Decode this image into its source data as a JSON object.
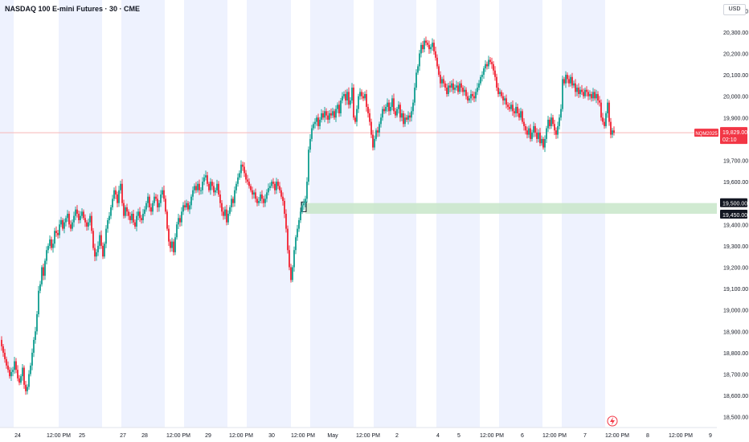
{
  "title": "NASDAQ 100 E-mini Futures · 30 · CME",
  "currency": "USD",
  "colors": {
    "up": "#26a69a",
    "down": "#f23645",
    "session_band": "#eef2fe",
    "price_line": "#f7b7b7",
    "zone": "#c8e6c9",
    "tag_dark": "#131722",
    "badge_red": "#f23645",
    "alert": "#f23645"
  },
  "price_tag": {
    "symbol": "NQM2025",
    "price": "19,829.00",
    "countdown": "02:10"
  },
  "zone_tags": {
    "upper": "19,500.00",
    "lower": "19,450.00"
  },
  "alert_icon": "lightning-icon",
  "chart_data": {
    "type": "candlestick",
    "title": "NASDAQ 100 E-mini Futures · 30 · CME",
    "ylim": [
      18450,
      20450
    ],
    "y_ticks": [
      "20,400.00",
      "20,300.00",
      "20,200.00",
      "20,100.00",
      "20,000.00",
      "19,900.00",
      "19,800.00",
      "19,700.00",
      "19,600.00",
      "19,500.00",
      "19,400.00",
      "19,300.00",
      "19,200.00",
      "19,100.00",
      "19,000.00",
      "18,900.00",
      "18,800.00",
      "18,700.00",
      "18,600.00",
      "18,500.00"
    ],
    "x_ticks": [
      "24",
      "12:00 PM",
      "25",
      "27",
      "28",
      "12:00 PM",
      "29",
      "12:00 PM",
      "30",
      "12:00 PM",
      "May",
      "12:00 PM",
      "2",
      "4",
      "5",
      "12:00 PM",
      "6",
      "12:00 PM",
      "7",
      "12:00 PM",
      "8",
      "12:00 PM",
      "9"
    ],
    "current_price": 19829,
    "zone": [
      19450,
      19500
    ],
    "price_path": [
      [
        0,
        18860
      ],
      [
        2,
        18830
      ],
      [
        4,
        18800
      ],
      [
        6,
        18770
      ],
      [
        8,
        18740
      ],
      [
        10,
        18720
      ],
      [
        12,
        18690
      ],
      [
        14,
        18710
      ],
      [
        16,
        18720
      ],
      [
        18,
        18760
      ],
      [
        20,
        18720
      ],
      [
        22,
        18680
      ],
      [
        24,
        18660
      ],
      [
        26,
        18690
      ],
      [
        28,
        18730
      ],
      [
        30,
        18650
      ],
      [
        32,
        18620
      ],
      [
        34,
        18640
      ],
      [
        36,
        18700
      ],
      [
        38,
        18740
      ],
      [
        40,
        18800
      ],
      [
        42,
        18860
      ],
      [
        44,
        18900
      ],
      [
        46,
        18980
      ],
      [
        48,
        19090
      ],
      [
        50,
        19120
      ],
      [
        52,
        19200
      ],
      [
        54,
        19160
      ],
      [
        56,
        19230
      ],
      [
        58,
        19280
      ],
      [
        60,
        19300
      ],
      [
        62,
        19330
      ],
      [
        64,
        19290
      ],
      [
        66,
        19310
      ],
      [
        68,
        19370
      ],
      [
        70,
        19360
      ],
      [
        72,
        19350
      ],
      [
        74,
        19400
      ],
      [
        76,
        19420
      ],
      [
        78,
        19380
      ],
      [
        80,
        19410
      ],
      [
        82,
        19430
      ],
      [
        84,
        19450
      ],
      [
        86,
        19400
      ],
      [
        88,
        19380
      ],
      [
        90,
        19410
      ],
      [
        92,
        19440
      ],
      [
        94,
        19470
      ],
      [
        96,
        19450
      ],
      [
        98,
        19420
      ],
      [
        100,
        19440
      ],
      [
        102,
        19460
      ],
      [
        104,
        19430
      ],
      [
        106,
        19410
      ],
      [
        108,
        19390
      ],
      [
        110,
        19410
      ],
      [
        112,
        19440
      ],
      [
        114,
        19370
      ],
      [
        116,
        19290
      ],
      [
        118,
        19250
      ],
      [
        120,
        19270
      ],
      [
        122,
        19300
      ],
      [
        124,
        19350
      ],
      [
        126,
        19300
      ],
      [
        128,
        19250
      ],
      [
        130,
        19310
      ],
      [
        132,
        19380
      ],
      [
        134,
        19420
      ],
      [
        136,
        19440
      ],
      [
        138,
        19480
      ],
      [
        140,
        19520
      ],
      [
        142,
        19560
      ],
      [
        144,
        19540
      ],
      [
        146,
        19500
      ],
      [
        148,
        19560
      ],
      [
        150,
        19590
      ],
      [
        152,
        19500
      ],
      [
        154,
        19440
      ],
      [
        156,
        19480
      ],
      [
        158,
        19460
      ],
      [
        160,
        19440
      ],
      [
        162,
        19420
      ],
      [
        164,
        19450
      ],
      [
        166,
        19410
      ],
      [
        168,
        19390
      ],
      [
        170,
        19440
      ],
      [
        172,
        19460
      ],
      [
        174,
        19430
      ],
      [
        176,
        19420
      ],
      [
        178,
        19450
      ],
      [
        180,
        19470
      ],
      [
        182,
        19500
      ],
      [
        184,
        19530
      ],
      [
        186,
        19480
      ],
      [
        188,
        19460
      ],
      [
        190,
        19500
      ],
      [
        192,
        19530
      ],
      [
        194,
        19520
      ],
      [
        196,
        19480
      ],
      [
        198,
        19500
      ],
      [
        200,
        19540
      ],
      [
        202,
        19560
      ],
      [
        204,
        19520
      ],
      [
        206,
        19460
      ],
      [
        208,
        19380
      ],
      [
        210,
        19320
      ],
      [
        212,
        19290
      ],
      [
        214,
        19320
      ],
      [
        216,
        19270
      ],
      [
        218,
        19340
      ],
      [
        220,
        19400
      ],
      [
        222,
        19430
      ],
      [
        224,
        19410
      ],
      [
        226,
        19460
      ],
      [
        228,
        19490
      ],
      [
        230,
        19480
      ],
      [
        232,
        19500
      ],
      [
        234,
        19470
      ],
      [
        236,
        19490
      ],
      [
        238,
        19530
      ],
      [
        240,
        19560
      ],
      [
        242,
        19580
      ],
      [
        244,
        19560
      ],
      [
        246,
        19590
      ],
      [
        248,
        19560
      ],
      [
        250,
        19560
      ],
      [
        252,
        19600
      ],
      [
        254,
        19620
      ],
      [
        256,
        19630
      ],
      [
        258,
        19590
      ],
      [
        260,
        19560
      ],
      [
        262,
        19600
      ],
      [
        264,
        19580
      ],
      [
        266,
        19550
      ],
      [
        268,
        19560
      ],
      [
        270,
        19590
      ],
      [
        272,
        19540
      ],
      [
        274,
        19500
      ],
      [
        276,
        19460
      ],
      [
        278,
        19440
      ],
      [
        280,
        19470
      ],
      [
        282,
        19410
      ],
      [
        284,
        19450
      ],
      [
        286,
        19480
      ],
      [
        288,
        19520
      ],
      [
        290,
        19500
      ],
      [
        292,
        19560
      ],
      [
        294,
        19590
      ],
      [
        296,
        19620
      ],
      [
        298,
        19640
      ],
      [
        300,
        19680
      ],
      [
        302,
        19670
      ],
      [
        304,
        19640
      ],
      [
        306,
        19610
      ],
      [
        308,
        19600
      ],
      [
        310,
        19580
      ],
      [
        312,
        19560
      ],
      [
        314,
        19540
      ],
      [
        316,
        19550
      ],
      [
        318,
        19520
      ],
      [
        320,
        19500
      ],
      [
        322,
        19510
      ],
      [
        324,
        19540
      ],
      [
        326,
        19520
      ],
      [
        328,
        19500
      ],
      [
        330,
        19520
      ],
      [
        332,
        19550
      ],
      [
        334,
        19570
      ],
      [
        336,
        19580
      ],
      [
        338,
        19600
      ],
      [
        340,
        19590
      ],
      [
        342,
        19560
      ],
      [
        344,
        19600
      ],
      [
        346,
        19580
      ],
      [
        348,
        19560
      ],
      [
        350,
        19530
      ],
      [
        352,
        19510
      ],
      [
        354,
        19450
      ],
      [
        356,
        19380
      ],
      [
        358,
        19280
      ],
      [
        360,
        19200
      ],
      [
        362,
        19140
      ],
      [
        364,
        19200
      ],
      [
        366,
        19280
      ],
      [
        368,
        19340
      ],
      [
        370,
        19380
      ],
      [
        372,
        19420
      ],
      [
        374,
        19460
      ],
      [
        376,
        19490
      ],
      [
        378,
        19500
      ],
      [
        380,
        19520
      ],
      [
        382,
        19600
      ],
      [
        384,
        19750
      ],
      [
        386,
        19800
      ],
      [
        388,
        19850
      ],
      [
        390,
        19870
      ],
      [
        392,
        19880
      ],
      [
        394,
        19900
      ],
      [
        396,
        19860
      ],
      [
        398,
        19890
      ],
      [
        400,
        19920
      ],
      [
        402,
        19900
      ],
      [
        404,
        19930
      ],
      [
        406,
        19910
      ],
      [
        408,
        19890
      ],
      [
        410,
        19920
      ],
      [
        412,
        19910
      ],
      [
        414,
        19930
      ],
      [
        416,
        19900
      ],
      [
        418,
        19940
      ],
      [
        420,
        19960
      ],
      [
        422,
        19920
      ],
      [
        424,
        19980
      ],
      [
        426,
        20000
      ],
      [
        428,
        20010
      ],
      [
        430,
        19980
      ],
      [
        432,
        20020
      ],
      [
        434,
        19960
      ],
      [
        436,
        19980
      ],
      [
        438,
        20040
      ],
      [
        440,
        19900
      ],
      [
        442,
        19880
      ],
      [
        444,
        19940
      ],
      [
        446,
        20000
      ],
      [
        448,
        20020
      ],
      [
        450,
        20000
      ],
      [
        452,
        19990
      ],
      [
        454,
        20010
      ],
      [
        456,
        19950
      ],
      [
        458,
        19920
      ],
      [
        460,
        19880
      ],
      [
        462,
        19820
      ],
      [
        464,
        19760
      ],
      [
        466,
        19800
      ],
      [
        468,
        19840
      ],
      [
        470,
        19830
      ],
      [
        472,
        19870
      ],
      [
        474,
        19900
      ],
      [
        476,
        19940
      ],
      [
        478,
        19930
      ],
      [
        480,
        19950
      ],
      [
        482,
        19970
      ],
      [
        484,
        19930
      ],
      [
        486,
        19950
      ],
      [
        488,
        19990
      ],
      [
        490,
        19930
      ],
      [
        492,
        19910
      ],
      [
        494,
        19940
      ],
      [
        496,
        19960
      ],
      [
        498,
        19900
      ],
      [
        500,
        19920
      ],
      [
        502,
        19870
      ],
      [
        504,
        19900
      ],
      [
        506,
        19890
      ],
      [
        508,
        19910
      ],
      [
        510,
        19900
      ],
      [
        512,
        19930
      ],
      [
        514,
        19970
      ],
      [
        516,
        20040
      ],
      [
        518,
        20110
      ],
      [
        520,
        20140
      ],
      [
        522,
        20200
      ],
      [
        524,
        20240
      ],
      [
        526,
        20220
      ],
      [
        528,
        20260
      ],
      [
        530,
        20250
      ],
      [
        532,
        20240
      ],
      [
        534,
        20220
      ],
      [
        536,
        20230
      ],
      [
        538,
        20250
      ],
      [
        540,
        20210
      ],
      [
        542,
        20180
      ],
      [
        544,
        20140
      ],
      [
        546,
        20100
      ],
      [
        548,
        20060
      ],
      [
        550,
        20080
      ],
      [
        552,
        20060
      ],
      [
        554,
        20040
      ],
      [
        556,
        20010
      ],
      [
        558,
        20050
      ],
      [
        560,
        20040
      ],
      [
        562,
        20060
      ],
      [
        564,
        20030
      ],
      [
        566,
        20040
      ],
      [
        568,
        20050
      ],
      [
        570,
        20020
      ],
      [
        572,
        20060
      ],
      [
        574,
        20040
      ],
      [
        576,
        20020
      ],
      [
        578,
        20030
      ],
      [
        580,
        20000
      ],
      [
        582,
        19980
      ],
      [
        584,
        19990
      ],
      [
        586,
        20010
      ],
      [
        588,
        20000
      ],
      [
        590,
        19990
      ],
      [
        592,
        20020
      ],
      [
        594,
        20040
      ],
      [
        596,
        20060
      ],
      [
        598,
        20090
      ],
      [
        600,
        20100
      ],
      [
        602,
        20130
      ],
      [
        604,
        20150
      ],
      [
        606,
        20140
      ],
      [
        608,
        20170
      ],
      [
        610,
        20160
      ],
      [
        612,
        20150
      ],
      [
        614,
        20120
      ],
      [
        616,
        20090
      ],
      [
        618,
        20040
      ],
      [
        620,
        20010
      ],
      [
        622,
        20020
      ],
      [
        624,
        20000
      ],
      [
        626,
        19980
      ],
      [
        628,
        19990
      ],
      [
        630,
        19960
      ],
      [
        632,
        19950
      ],
      [
        634,
        19940
      ],
      [
        636,
        19960
      ],
      [
        638,
        19930
      ],
      [
        640,
        19920
      ],
      [
        642,
        19950
      ],
      [
        644,
        19920
      ],
      [
        646,
        19900
      ],
      [
        648,
        19930
      ],
      [
        650,
        19880
      ],
      [
        652,
        19860
      ],
      [
        654,
        19840
      ],
      [
        656,
        19820
      ],
      [
        658,
        19850
      ],
      [
        660,
        19800
      ],
      [
        662,
        19830
      ],
      [
        664,
        19860
      ],
      [
        666,
        19830
      ],
      [
        668,
        19800
      ],
      [
        670,
        19830
      ],
      [
        672,
        19780
      ],
      [
        674,
        19800
      ],
      [
        676,
        19760
      ],
      [
        678,
        19800
      ],
      [
        680,
        19850
      ],
      [
        682,
        19890
      ],
      [
        684,
        19860
      ],
      [
        686,
        19900
      ],
      [
        688,
        19870
      ],
      [
        690,
        19840
      ],
      [
        692,
        19820
      ],
      [
        694,
        19860
      ],
      [
        696,
        19900
      ],
      [
        698,
        19940
      ],
      [
        700,
        20080
      ],
      [
        702,
        20060
      ],
      [
        704,
        20100
      ],
      [
        706,
        20080
      ],
      [
        708,
        20060
      ],
      [
        710,
        20090
      ],
      [
        712,
        20050
      ],
      [
        714,
        20060
      ],
      [
        716,
        20020
      ],
      [
        718,
        20040
      ],
      [
        720,
        20010
      ],
      [
        722,
        20030
      ],
      [
        724,
        20020
      ],
      [
        726,
        20000
      ],
      [
        728,
        20030
      ],
      [
        730,
        20020
      ],
      [
        732,
        20000
      ],
      [
        734,
        20010
      ],
      [
        736,
        19990
      ],
      [
        738,
        20020
      ],
      [
        740,
        19990
      ],
      [
        742,
        20010
      ],
      [
        744,
        19980
      ],
      [
        746,
        19970
      ],
      [
        748,
        19900
      ],
      [
        750,
        19880
      ],
      [
        752,
        19860
      ],
      [
        754,
        19920
      ],
      [
        756,
        19970
      ],
      [
        758,
        19880
      ],
      [
        760,
        19820
      ],
      [
        762,
        19840
      ],
      [
        764,
        19829
      ]
    ]
  }
}
